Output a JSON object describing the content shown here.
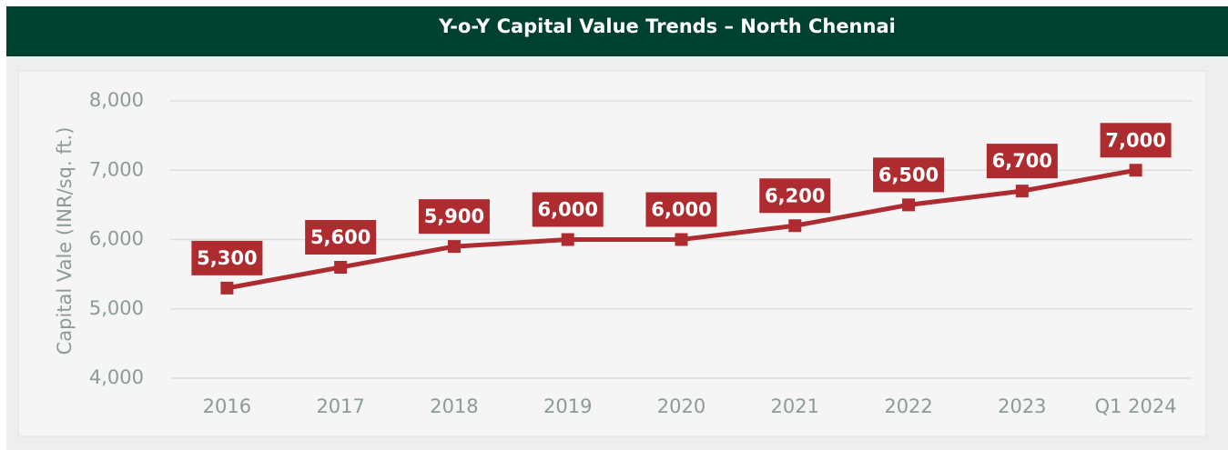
{
  "chart_data": {
    "type": "line",
    "title": "Y-o-Y Capital Value Trends – North Chennai",
    "y_label": "Capital Vale (INR/sq. ft.)",
    "categories": [
      "2016",
      "2017",
      "2018",
      "2019",
      "2020",
      "2021",
      "2022",
      "2023",
      "Q1 2024"
    ],
    "series": [
      {
        "name": "Capital Value",
        "color": "#ae2b2f",
        "values": [
          5300,
          5600,
          5900,
          6000,
          6000,
          6200,
          6500,
          6700,
          7000
        ],
        "value_labels": [
          "5,300",
          "5,600",
          "5,900",
          "6,000",
          "6,000",
          "6,200",
          "6,500",
          "6,700",
          "7,000"
        ]
      }
    ],
    "ylim": [
      4000,
      8000
    ],
    "yticks": [
      {
        "value": 4000,
        "label": "4,000"
      },
      {
        "value": 5000,
        "label": "5,000"
      },
      {
        "value": 6000,
        "label": "6,000"
      },
      {
        "value": 7000,
        "label": "7,000"
      },
      {
        "value": 8000,
        "label": "8,000"
      }
    ],
    "grid": true
  }
}
